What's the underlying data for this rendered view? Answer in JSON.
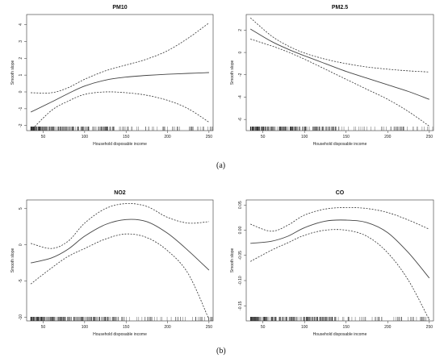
{
  "captions": {
    "top": "(a)",
    "bottom": "(b)"
  },
  "chart_data": [
    {
      "type": "line",
      "title": "PM10",
      "xlabel": "Household disposable income",
      "ylabel": "Smooth slope",
      "xlim": [
        30,
        255
      ],
      "ylim": [
        -2.3,
        4.6
      ],
      "xticks": [
        50,
        100,
        150,
        200,
        250
      ],
      "yticks": [
        -2,
        -1,
        0,
        1,
        2,
        3,
        4
      ],
      "series": [
        {
          "style": "solid",
          "x": [
            35,
            60,
            80,
            100,
            125,
            150,
            175,
            200,
            225,
            250
          ],
          "y": [
            -1.2,
            -0.6,
            -0.1,
            0.35,
            0.7,
            0.88,
            0.98,
            1.05,
            1.1,
            1.15
          ]
        },
        {
          "style": "dashed",
          "x": [
            35,
            60,
            80,
            100,
            125,
            150,
            175,
            200,
            225,
            250
          ],
          "y": [
            -0.05,
            -0.05,
            0.25,
            0.75,
            1.25,
            1.6,
            1.95,
            2.45,
            3.2,
            4.1
          ]
        },
        {
          "style": "dashed",
          "x": [
            35,
            60,
            80,
            100,
            125,
            150,
            175,
            200,
            225,
            250
          ],
          "y": [
            -2.3,
            -1.1,
            -0.55,
            -0.15,
            0.0,
            -0.05,
            -0.2,
            -0.5,
            -1.0,
            -1.8
          ]
        }
      ],
      "grid": false
    },
    {
      "type": "line",
      "title": "PM2.5",
      "xlabel": "Household disposable income",
      "ylabel": "Smooth slope",
      "xlim": [
        30,
        255
      ],
      "ylim": [
        -7,
        3.4
      ],
      "xticks": [
        50,
        100,
        150,
        200,
        250
      ],
      "yticks": [
        -6,
        -4,
        -2,
        0,
        2
      ],
      "series": [
        {
          "style": "solid",
          "x": [
            35,
            60,
            80,
            100,
            125,
            150,
            175,
            200,
            225,
            250
          ],
          "y": [
            2.1,
            1.0,
            0.3,
            -0.3,
            -1.0,
            -1.7,
            -2.3,
            -2.9,
            -3.5,
            -4.2
          ]
        },
        {
          "style": "dashed",
          "x": [
            35,
            60,
            80,
            100,
            125,
            150,
            175,
            200,
            225,
            250
          ],
          "y": [
            3.1,
            1.5,
            0.6,
            -0.05,
            -0.6,
            -1.0,
            -1.3,
            -1.5,
            -1.65,
            -1.75
          ]
        },
        {
          "style": "dashed",
          "x": [
            35,
            60,
            80,
            100,
            125,
            150,
            175,
            200,
            225,
            250
          ],
          "y": [
            1.2,
            0.6,
            0.05,
            -0.6,
            -1.5,
            -2.4,
            -3.3,
            -4.2,
            -5.3,
            -6.6
          ]
        }
      ],
      "grid": false
    },
    {
      "type": "line",
      "title": "NO2",
      "xlabel": "Household disposable income",
      "ylabel": "Smooth slope",
      "xlim": [
        30,
        255
      ],
      "ylim": [
        -10.5,
        6.2
      ],
      "xticks": [
        50,
        100,
        150,
        200,
        250
      ],
      "yticks": [
        -10,
        -5,
        0,
        5
      ],
      "series": [
        {
          "style": "solid",
          "x": [
            35,
            60,
            80,
            100,
            125,
            150,
            175,
            200,
            225,
            250
          ],
          "y": [
            -2.5,
            -1.8,
            -0.6,
            1.2,
            2.8,
            3.5,
            3.2,
            1.6,
            -0.8,
            -3.5
          ]
        },
        {
          "style": "dashed",
          "x": [
            35,
            60,
            80,
            100,
            125,
            150,
            175,
            200,
            225,
            250
          ],
          "y": [
            0.2,
            -0.5,
            0.5,
            3.0,
            5.0,
            5.7,
            5.3,
            3.8,
            3.0,
            3.2
          ]
        },
        {
          "style": "dashed",
          "x": [
            35,
            60,
            80,
            100,
            125,
            150,
            175,
            200,
            225,
            250
          ],
          "y": [
            -5.4,
            -3.2,
            -1.6,
            -0.5,
            0.8,
            1.5,
            1.0,
            -0.8,
            -4.0,
            -10.3
          ]
        }
      ],
      "grid": false
    },
    {
      "type": "line",
      "title": "CO",
      "xlabel": "Household disposable income",
      "ylabel": "Smooth slope",
      "xlim": [
        30,
        255
      ],
      "ylim": [
        -0.18,
        0.06
      ],
      "xticks": [
        50,
        100,
        150,
        200,
        250
      ],
      "yticks": [
        -0.15,
        -0.1,
        -0.05,
        0.0,
        0.05
      ],
      "ytick_labels": [
        "-0.15",
        "-0.10",
        "-0.05",
        "0.00",
        "0.05"
      ],
      "series": [
        {
          "style": "solid",
          "x": [
            35,
            60,
            80,
            100,
            125,
            150,
            175,
            200,
            225,
            250
          ],
          "y": [
            -0.026,
            -0.022,
            -0.012,
            0.005,
            0.018,
            0.02,
            0.015,
            -0.005,
            -0.045,
            -0.095
          ]
        },
        {
          "style": "dashed",
          "x": [
            35,
            60,
            80,
            100,
            125,
            150,
            175,
            200,
            225,
            250
          ],
          "y": [
            0.012,
            -0.002,
            0.01,
            0.03,
            0.042,
            0.045,
            0.043,
            0.035,
            0.02,
            0.002
          ]
        },
        {
          "style": "dashed",
          "x": [
            35,
            60,
            80,
            100,
            125,
            150,
            175,
            200,
            225,
            250
          ],
          "y": [
            -0.062,
            -0.04,
            -0.025,
            -0.01,
            0.0,
            0.0,
            -0.012,
            -0.045,
            -0.1,
            -0.178
          ]
        }
      ],
      "grid": false
    }
  ]
}
